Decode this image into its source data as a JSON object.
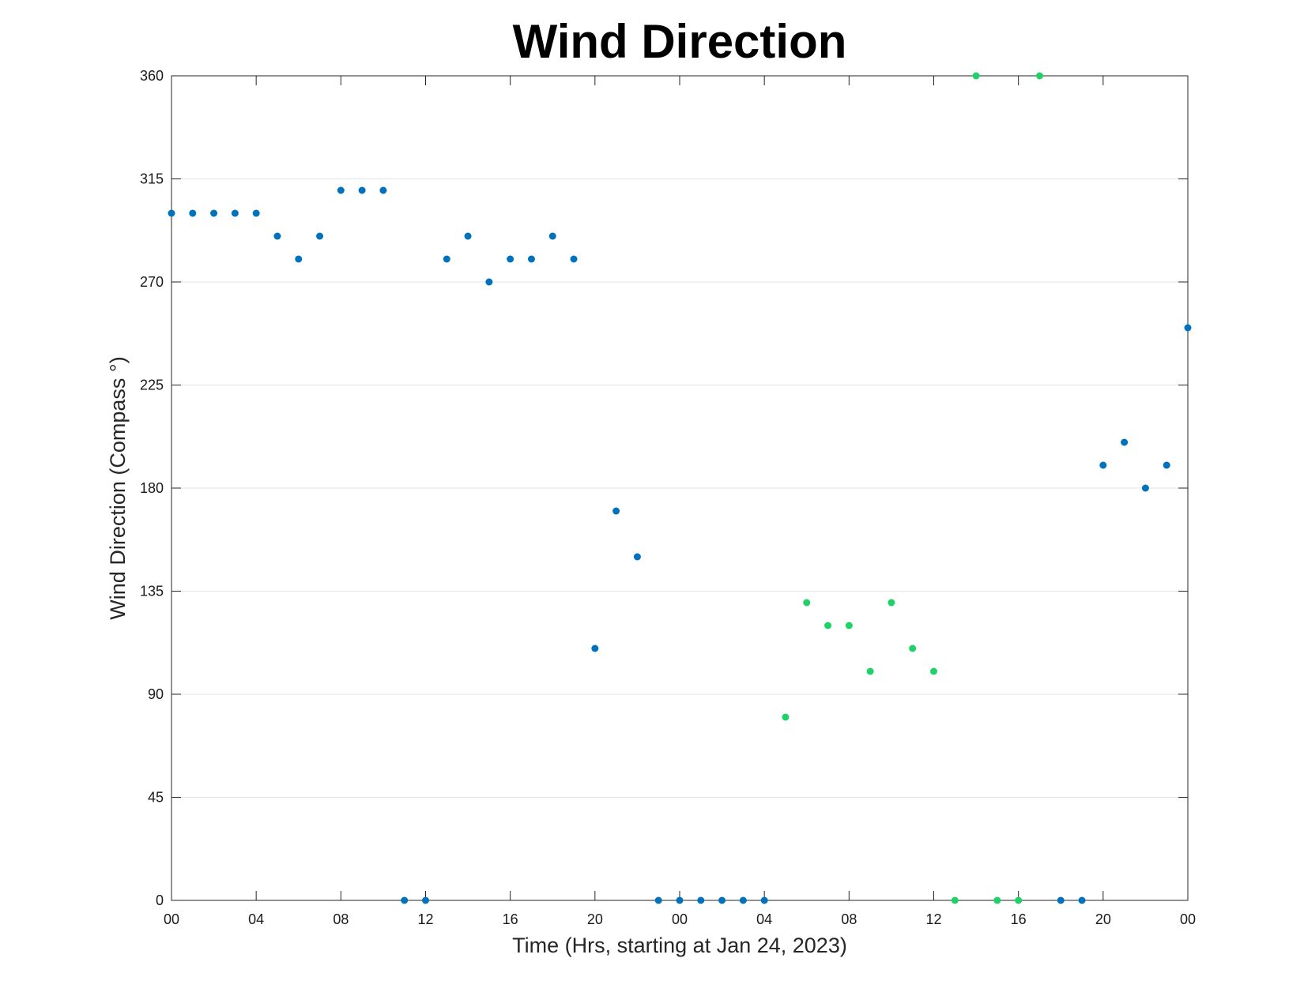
{
  "chart_data": {
    "type": "scatter",
    "title": "Wind Direction",
    "xlabel": "Time (Hrs, starting at Jan 24, 2023)",
    "ylabel": "Wind Direction (Compass °)",
    "xlim": [
      "2023-01-24 00:00",
      "2023-01-26 00:00"
    ],
    "ylim": [
      0,
      360
    ],
    "x_tick_values": [
      "2023-01-24 00:00",
      "2023-01-24 04:00",
      "2023-01-24 08:00",
      "2023-01-24 12:00",
      "2023-01-24 16:00",
      "2023-01-24 20:00",
      "2023-01-25 00:00",
      "2023-01-25 04:00",
      "2023-01-25 08:00",
      "2023-01-25 12:00",
      "2023-01-25 16:00",
      "2023-01-25 20:00",
      "2023-01-26 00:00"
    ],
    "x_tick_labels": [
      "00",
      "04",
      "08",
      "12",
      "16",
      "20",
      "00",
      "04",
      "08",
      "12",
      "16",
      "20",
      "00"
    ],
    "y_ticks": [
      0,
      45,
      90,
      135,
      180,
      225,
      270,
      315,
      360
    ],
    "grid": "horizontal",
    "series": [
      {
        "color": "#0072BD",
        "points": [
          {
            "x": "2023-01-24 00:00",
            "y": 300
          },
          {
            "x": "2023-01-24 01:00",
            "y": 300
          },
          {
            "x": "2023-01-24 02:00",
            "y": 300
          },
          {
            "x": "2023-01-24 03:00",
            "y": 300
          },
          {
            "x": "2023-01-24 04:00",
            "y": 300
          },
          {
            "x": "2023-01-24 05:00",
            "y": 290
          },
          {
            "x": "2023-01-24 06:00",
            "y": 280
          },
          {
            "x": "2023-01-24 07:00",
            "y": 290
          },
          {
            "x": "2023-01-24 08:00",
            "y": 310
          },
          {
            "x": "2023-01-24 09:00",
            "y": 310
          },
          {
            "x": "2023-01-24 10:00",
            "y": 310
          },
          {
            "x": "2023-01-24 11:00",
            "y": 0
          },
          {
            "x": "2023-01-24 12:00",
            "y": 0
          },
          {
            "x": "2023-01-24 13:00",
            "y": 280
          },
          {
            "x": "2023-01-24 14:00",
            "y": 290
          },
          {
            "x": "2023-01-24 15:00",
            "y": 270
          },
          {
            "x": "2023-01-24 16:00",
            "y": 280
          },
          {
            "x": "2023-01-24 17:00",
            "y": 280
          },
          {
            "x": "2023-01-24 18:00",
            "y": 290
          },
          {
            "x": "2023-01-24 19:00",
            "y": 280
          },
          {
            "x": "2023-01-24 20:00",
            "y": 110
          },
          {
            "x": "2023-01-24 21:00",
            "y": 170
          },
          {
            "x": "2023-01-24 22:00",
            "y": 150
          },
          {
            "x": "2023-01-24 23:00",
            "y": 0
          },
          {
            "x": "2023-01-25 00:00",
            "y": 0
          },
          {
            "x": "2023-01-25 01:00",
            "y": 0
          },
          {
            "x": "2023-01-25 02:00",
            "y": 0
          },
          {
            "x": "2023-01-25 03:00",
            "y": 0
          },
          {
            "x": "2023-01-25 04:00",
            "y": 0
          },
          {
            "x": "2023-01-25 18:00",
            "y": 0
          },
          {
            "x": "2023-01-25 19:00",
            "y": 0
          },
          {
            "x": "2023-01-25 20:00",
            "y": 190
          },
          {
            "x": "2023-01-25 21:00",
            "y": 200
          },
          {
            "x": "2023-01-25 22:00",
            "y": 180
          },
          {
            "x": "2023-01-25 23:00",
            "y": 190
          },
          {
            "x": "2023-01-26 00:00",
            "y": 250
          }
        ]
      },
      {
        "color": "#1FD166",
        "points": [
          {
            "x": "2023-01-25 05:00",
            "y": 80
          },
          {
            "x": "2023-01-25 06:00",
            "y": 130
          },
          {
            "x": "2023-01-25 07:00",
            "y": 120
          },
          {
            "x": "2023-01-25 08:00",
            "y": 120
          },
          {
            "x": "2023-01-25 09:00",
            "y": 100
          },
          {
            "x": "2023-01-25 10:00",
            "y": 130
          },
          {
            "x": "2023-01-25 11:00",
            "y": 110
          },
          {
            "x": "2023-01-25 12:00",
            "y": 100
          },
          {
            "x": "2023-01-25 13:00",
            "y": 0
          },
          {
            "x": "2023-01-25 14:00",
            "y": 360
          },
          {
            "x": "2023-01-25 15:00",
            "y": 0
          },
          {
            "x": "2023-01-25 16:00",
            "y": 0
          },
          {
            "x": "2023-01-25 17:00",
            "y": 360
          }
        ]
      }
    ]
  }
}
